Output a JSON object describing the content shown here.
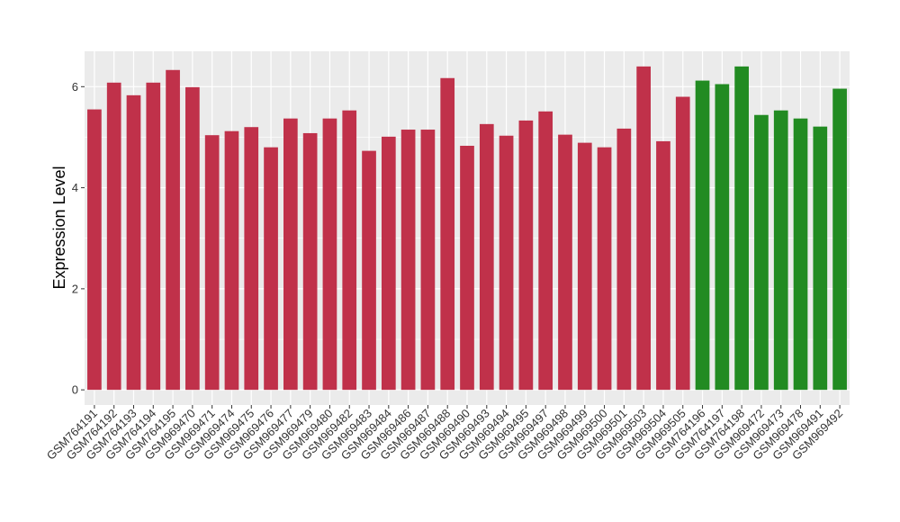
{
  "chart_data": {
    "type": "bar",
    "title": "",
    "xlabel": "",
    "ylabel": "Expression Level",
    "ylim": [
      -0.3,
      6.7
    ],
    "yticks": [
      0,
      2,
      4,
      6
    ],
    "grid": true,
    "legend": "none",
    "colors": {
      "group1": "#c0314a",
      "group2": "#228b22",
      "panel": "#ebebeb",
      "gridline": "#ffffff"
    },
    "categories": [
      "GSM764191",
      "GSM764192",
      "GSM764193",
      "GSM764194",
      "GSM764195",
      "GSM969470",
      "GSM969471",
      "GSM969474",
      "GSM969475",
      "GSM969476",
      "GSM969477",
      "GSM969479",
      "GSM969480",
      "GSM969482",
      "GSM969483",
      "GSM969484",
      "GSM969486",
      "GSM969487",
      "GSM969488",
      "GSM969490",
      "GSM969493",
      "GSM969494",
      "GSM969495",
      "GSM969497",
      "GSM969498",
      "GSM969499",
      "GSM969500",
      "GSM969501",
      "GSM969503",
      "GSM969504",
      "GSM969505",
      "GSM764196",
      "GSM764197",
      "GSM764198",
      "GSM969472",
      "GSM969473",
      "GSM969478",
      "GSM969491",
      "GSM969492"
    ],
    "values": [
      5.55,
      6.08,
      5.83,
      6.08,
      6.33,
      5.99,
      5.04,
      5.12,
      5.2,
      4.8,
      5.37,
      5.08,
      5.37,
      5.53,
      4.73,
      5.01,
      5.15,
      5.15,
      6.17,
      4.83,
      5.26,
      5.03,
      5.33,
      5.51,
      5.05,
      4.89,
      4.8,
      5.17,
      6.4,
      4.92,
      5.8,
      6.12,
      6.05,
      6.4,
      5.44,
      5.53,
      5.37,
      5.21,
      5.96
    ],
    "groups": [
      "group1",
      "group1",
      "group1",
      "group1",
      "group1",
      "group1",
      "group1",
      "group1",
      "group1",
      "group1",
      "group1",
      "group1",
      "group1",
      "group1",
      "group1",
      "group1",
      "group1",
      "group1",
      "group1",
      "group1",
      "group1",
      "group1",
      "group1",
      "group1",
      "group1",
      "group1",
      "group1",
      "group1",
      "group1",
      "group1",
      "group1",
      "group2",
      "group2",
      "group2",
      "group2",
      "group2",
      "group2",
      "group2",
      "group2"
    ]
  }
}
